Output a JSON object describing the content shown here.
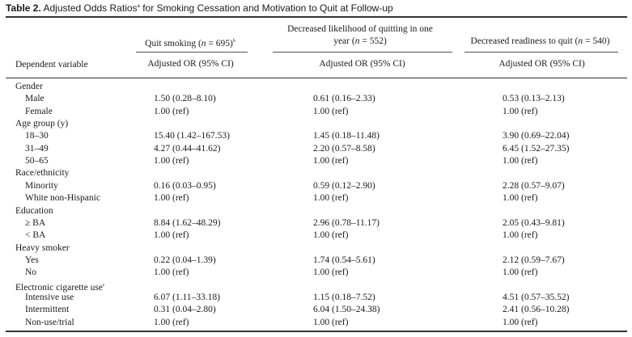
{
  "title": {
    "bold": "Table 2.",
    "text": " Adjusted Odds Ratios",
    "sup": "a",
    "rest": " for Smoking Cessation and Motivation to Quit at Follow-up"
  },
  "headers": {
    "col1": {
      "pre": "Quit smoking (",
      "n": "n",
      "post": " = 695)",
      "sup": "b"
    },
    "col2_line1": "Decreased likelihood of quitting in one",
    "col2_line2": {
      "pre": "year (",
      "n": "n",
      "post": " = 552)"
    },
    "col3": {
      "pre": "Decreased readiness to quit (",
      "n": "n",
      "post": " = 540)"
    },
    "dependent_variable": "Dependent variable",
    "sub1": "Adjusted OR (95% CI)",
    "sub2": "Adjusted OR (95% CI)",
    "sub3": "Adjusted OR (95% CI)"
  },
  "rows": [
    {
      "label": "Gender",
      "group": true
    },
    {
      "label": "Male",
      "c1": "1.50 (0.28–8.10)",
      "c2": "0.61 (0.16–2.33)",
      "c3": "0.53 (0.13–2.13)"
    },
    {
      "label": "Female",
      "c1": "1.00 (ref)",
      "c2": "1.00 (ref)",
      "c3": "1.00 (ref)"
    },
    {
      "label": "Age group (y)",
      "group": true
    },
    {
      "label": "18–30",
      "c1": "15.40 (1.42–167.53)",
      "c2": "1.45 (0.18–11.48)",
      "c3": "3.90 (0.69–22.04)"
    },
    {
      "label": "31–49",
      "c1": "4.27 (0.44–41.62)",
      "c2": "2.20 (0.57–8.58)",
      "c3": "6.45 (1.52–27.35)"
    },
    {
      "label": "50–65",
      "c1": "1.00 (ref)",
      "c2": "1.00 (ref)",
      "c3": "1.00 (ref)"
    },
    {
      "label": "Race/ethnicity",
      "group": true
    },
    {
      "label": "Minority",
      "c1": "0.16 (0.03–0.95)",
      "c2": "0.59 (0.12–2.90)",
      "c3": "2.28 (0.57–9.07)"
    },
    {
      "label": "White non-Hispanic",
      "c1": "1.00 (ref)",
      "c2": "1.00 (ref)",
      "c3": "1.00 (ref)"
    },
    {
      "label": "Education",
      "group": true
    },
    {
      "label": "≥ BA",
      "c1": "8.84 (1.62–48.29)",
      "c2": "2.96 (0.78–11.17)",
      "c3": "2.05 (0.43–9.81)"
    },
    {
      "label": "< BA",
      "c1": "1.00 (ref)",
      "c2": "1.00 (ref)",
      "c3": "1.00 (ref)"
    },
    {
      "label": "Heavy smoker",
      "group": true
    },
    {
      "label": "Yes",
      "c1": "0.22 (0.04–1.39)",
      "c2": "1.74 (0.54–5.61)",
      "c3": "2.12 (0.59–7.67)"
    },
    {
      "label": "No",
      "c1": "1.00 (ref)",
      "c2": "1.00 (ref)",
      "c3": "1.00 (ref)"
    },
    {
      "label": "Electronic cigarette use",
      "sup": "c",
      "group": true
    },
    {
      "label": "Intensive use",
      "c1": "6.07 (1.11–33.18)",
      "c2": "1.15 (0.18–7.52)",
      "c3": "4.51 (0.57–35.52)"
    },
    {
      "label": "Intermittent",
      "c1": "0.31 (0.04–2.80)",
      "c2": "6.04 (1.50–24.38)",
      "c3": "2.41 (0.56–10.28)"
    },
    {
      "label": "Non-use/trial",
      "c1": "1.00 (ref)",
      "c2": "1.00 (ref)",
      "c3": "1.00 (ref)"
    }
  ]
}
